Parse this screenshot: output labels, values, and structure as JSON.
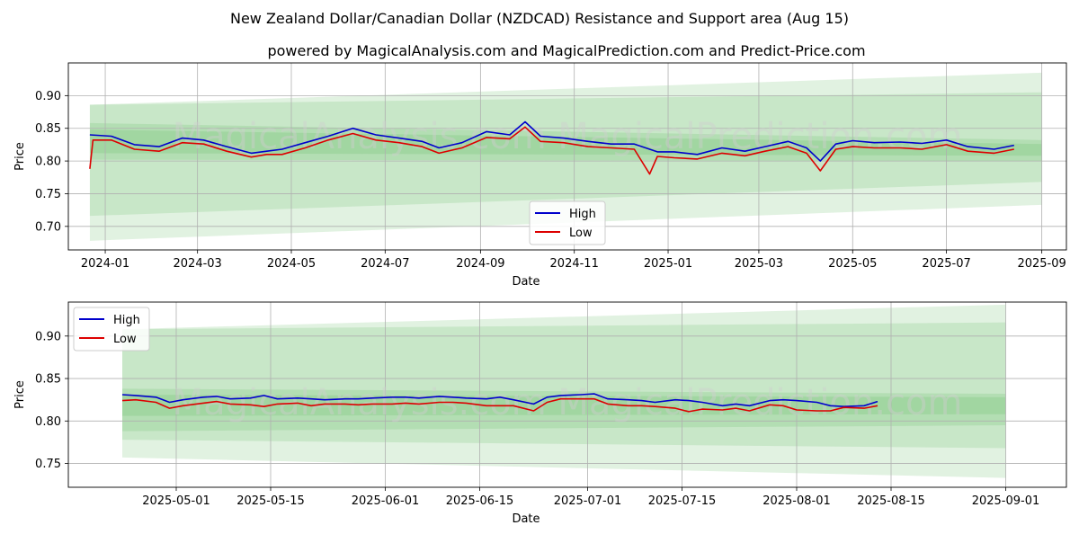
{
  "title": "New Zealand Dollar/Canadian Dollar (NZDCAD) Resistance and Support area (Aug 15)",
  "subtitle": "powered by MagicalAnalysis.com and MagicalPrediction.com and Predict-Price.com",
  "watermark": "MagicalAnalysis.com    MagicalPrediction.com",
  "colors": {
    "high": "#0000cc",
    "low": "#dd0000",
    "band": "#4caf50",
    "grid": "#b0b0b0"
  },
  "chart_data": [
    {
      "type": "line",
      "xlabel": "Date",
      "ylabel": "Price",
      "x_range": [
        "2023-12-08",
        "2025-09-17"
      ],
      "ylim": [
        0.664,
        0.95
      ],
      "x_ticks": [
        "2024-01",
        "2024-03",
        "2024-05",
        "2024-07",
        "2024-09",
        "2024-11",
        "2025-01",
        "2025-03",
        "2025-05",
        "2025-07",
        "2025-09"
      ],
      "x_tick_dates": [
        "2024-01-01",
        "2024-03-01",
        "2024-05-01",
        "2024-07-01",
        "2024-09-01",
        "2024-11-01",
        "2025-01-01",
        "2025-03-01",
        "2025-05-01",
        "2025-07-01",
        "2025-09-01"
      ],
      "y_ticks": [
        "0.70",
        "0.75",
        "0.80",
        "0.85",
        "0.90"
      ],
      "y_tick_values": [
        0.7,
        0.75,
        0.8,
        0.85,
        0.9
      ],
      "grid": true,
      "legend": "lower-center",
      "bands": [
        {
          "x": [
            "2023-12-22",
            "2025-09-01"
          ],
          "upper": [
            0.886,
            0.935
          ],
          "lower": [
            0.678,
            0.733
          ]
        },
        {
          "x": [
            "2023-12-22",
            "2025-09-01"
          ],
          "upper": [
            0.886,
            0.905
          ],
          "lower": [
            0.716,
            0.768
          ]
        },
        {
          "x": [
            "2023-12-22",
            "2025-09-01"
          ],
          "upper": [
            0.858,
            0.832
          ],
          "lower": [
            0.802,
            0.8
          ]
        },
        {
          "x": [
            "2023-12-22",
            "2025-09-01"
          ],
          "upper": [
            0.848,
            0.826
          ],
          "lower": [
            0.812,
            0.808
          ]
        }
      ],
      "series": [
        {
          "name": "High",
          "x": [
            "2023-12-22",
            "2024-01-05",
            "2024-01-20",
            "2024-02-05",
            "2024-02-20",
            "2024-03-05",
            "2024-03-20",
            "2024-04-05",
            "2024-04-15",
            "2024-04-25",
            "2024-05-10",
            "2024-05-25",
            "2024-06-10",
            "2024-06-25",
            "2024-07-10",
            "2024-07-25",
            "2024-08-05",
            "2024-08-20",
            "2024-09-05",
            "2024-09-20",
            "2024-09-30",
            "2024-10-10",
            "2024-10-25",
            "2024-11-10",
            "2024-11-25",
            "2024-12-10",
            "2024-12-25",
            "2025-01-05",
            "2025-01-20",
            "2025-02-05",
            "2025-02-20",
            "2025-03-05",
            "2025-03-20",
            "2025-04-01",
            "2025-04-10",
            "2025-04-20",
            "2025-05-01",
            "2025-05-15",
            "2025-06-01",
            "2025-06-15",
            "2025-07-01",
            "2025-07-15",
            "2025-08-01",
            "2025-08-14"
          ],
          "y": [
            0.84,
            0.838,
            0.825,
            0.822,
            0.835,
            0.832,
            0.822,
            0.812,
            0.815,
            0.818,
            0.828,
            0.838,
            0.85,
            0.84,
            0.835,
            0.83,
            0.82,
            0.828,
            0.845,
            0.84,
            0.86,
            0.838,
            0.835,
            0.83,
            0.826,
            0.826,
            0.814,
            0.814,
            0.81,
            0.82,
            0.815,
            0.822,
            0.83,
            0.82,
            0.8,
            0.826,
            0.831,
            0.828,
            0.829,
            0.827,
            0.832,
            0.822,
            0.818,
            0.824
          ]
        },
        {
          "name": "Low",
          "x": [
            "2023-12-22",
            "2023-12-24",
            "2024-01-05",
            "2024-01-20",
            "2024-02-05",
            "2024-02-20",
            "2024-03-05",
            "2024-03-20",
            "2024-04-05",
            "2024-04-15",
            "2024-04-25",
            "2024-05-10",
            "2024-05-25",
            "2024-06-10",
            "2024-06-25",
            "2024-07-10",
            "2024-07-25",
            "2024-08-05",
            "2024-08-20",
            "2024-09-05",
            "2024-09-20",
            "2024-09-30",
            "2024-10-10",
            "2024-10-25",
            "2024-11-10",
            "2024-11-25",
            "2024-12-10",
            "2024-12-20",
            "2024-12-25",
            "2025-01-05",
            "2025-01-20",
            "2025-02-05",
            "2025-02-20",
            "2025-03-05",
            "2025-03-20",
            "2025-04-01",
            "2025-04-10",
            "2025-04-20",
            "2025-05-01",
            "2025-05-15",
            "2025-06-01",
            "2025-06-15",
            "2025-07-01",
            "2025-07-15",
            "2025-08-01",
            "2025-08-14"
          ],
          "y": [
            0.788,
            0.832,
            0.832,
            0.818,
            0.815,
            0.828,
            0.826,
            0.815,
            0.806,
            0.81,
            0.81,
            0.82,
            0.832,
            0.842,
            0.832,
            0.828,
            0.822,
            0.812,
            0.82,
            0.836,
            0.834,
            0.852,
            0.83,
            0.828,
            0.822,
            0.82,
            0.818,
            0.78,
            0.807,
            0.805,
            0.803,
            0.812,
            0.808,
            0.815,
            0.822,
            0.812,
            0.785,
            0.818,
            0.822,
            0.82,
            0.82,
            0.818,
            0.825,
            0.815,
            0.812,
            0.818
          ]
        }
      ]
    },
    {
      "type": "line",
      "xlabel": "Date",
      "ylabel": "Price",
      "x_range": [
        "2025-04-15",
        "2025-09-10"
      ],
      "ylim": [
        0.722,
        0.94
      ],
      "x_ticks": [
        "2025-05-01",
        "2025-05-15",
        "2025-06-01",
        "2025-06-15",
        "2025-07-01",
        "2025-07-15",
        "2025-08-01",
        "2025-08-15",
        "2025-09-01"
      ],
      "x_tick_dates": [
        "2025-05-01",
        "2025-05-15",
        "2025-06-01",
        "2025-06-15",
        "2025-07-01",
        "2025-07-15",
        "2025-08-01",
        "2025-08-15",
        "2025-09-01"
      ],
      "y_ticks": [
        "0.75",
        "0.80",
        "0.85",
        "0.90"
      ],
      "y_tick_values": [
        0.75,
        0.8,
        0.85,
        0.9
      ],
      "grid": true,
      "legend": "top-left",
      "bands": [
        {
          "x": [
            "2025-04-23",
            "2025-09-01"
          ],
          "upper": [
            0.908,
            0.937
          ],
          "lower": [
            0.757,
            0.733
          ]
        },
        {
          "x": [
            "2025-04-23",
            "2025-09-01"
          ],
          "upper": [
            0.908,
            0.916
          ],
          "lower": [
            0.778,
            0.768
          ]
        },
        {
          "x": [
            "2025-04-23",
            "2025-09-01"
          ],
          "upper": [
            0.838,
            0.832
          ],
          "lower": [
            0.788,
            0.795
          ]
        },
        {
          "x": [
            "2025-04-23",
            "2025-09-01"
          ],
          "upper": [
            0.831,
            0.828
          ],
          "lower": [
            0.806,
            0.808
          ]
        }
      ],
      "series": [
        {
          "name": "High",
          "x": [
            "2025-04-23",
            "2025-04-25",
            "2025-04-28",
            "2025-04-30",
            "2025-05-02",
            "2025-05-05",
            "2025-05-07",
            "2025-05-09",
            "2025-05-12",
            "2025-05-14",
            "2025-05-16",
            "2025-05-19",
            "2025-05-21",
            "2025-05-23",
            "2025-05-26",
            "2025-05-28",
            "2025-05-30",
            "2025-06-02",
            "2025-06-04",
            "2025-06-06",
            "2025-06-09",
            "2025-06-11",
            "2025-06-13",
            "2025-06-16",
            "2025-06-18",
            "2025-06-20",
            "2025-06-23",
            "2025-06-25",
            "2025-06-27",
            "2025-06-30",
            "2025-07-02",
            "2025-07-04",
            "2025-07-07",
            "2025-07-09",
            "2025-07-11",
            "2025-07-14",
            "2025-07-16",
            "2025-07-18",
            "2025-07-21",
            "2025-07-23",
            "2025-07-25",
            "2025-07-28",
            "2025-07-30",
            "2025-08-01",
            "2025-08-04",
            "2025-08-06",
            "2025-08-08",
            "2025-08-11",
            "2025-08-13"
          ],
          "y": [
            0.831,
            0.83,
            0.828,
            0.822,
            0.825,
            0.828,
            0.829,
            0.826,
            0.827,
            0.83,
            0.826,
            0.827,
            0.826,
            0.825,
            0.826,
            0.826,
            0.827,
            0.828,
            0.828,
            0.827,
            0.829,
            0.828,
            0.827,
            0.826,
            0.828,
            0.825,
            0.82,
            0.828,
            0.83,
            0.831,
            0.832,
            0.826,
            0.825,
            0.824,
            0.822,
            0.825,
            0.824,
            0.822,
            0.818,
            0.82,
            0.818,
            0.824,
            0.825,
            0.824,
            0.822,
            0.818,
            0.817,
            0.818,
            0.823
          ]
        },
        {
          "name": "Low",
          "x": [
            "2025-04-23",
            "2025-04-25",
            "2025-04-28",
            "2025-04-30",
            "2025-05-02",
            "2025-05-05",
            "2025-05-07",
            "2025-05-09",
            "2025-05-12",
            "2025-05-14",
            "2025-05-16",
            "2025-05-19",
            "2025-05-21",
            "2025-05-23",
            "2025-05-26",
            "2025-05-28",
            "2025-05-30",
            "2025-06-02",
            "2025-06-04",
            "2025-06-06",
            "2025-06-09",
            "2025-06-11",
            "2025-06-13",
            "2025-06-16",
            "2025-06-18",
            "2025-06-20",
            "2025-06-23",
            "2025-06-25",
            "2025-06-27",
            "2025-06-30",
            "2025-07-02",
            "2025-07-04",
            "2025-07-07",
            "2025-07-09",
            "2025-07-11",
            "2025-07-14",
            "2025-07-16",
            "2025-07-18",
            "2025-07-21",
            "2025-07-23",
            "2025-07-25",
            "2025-07-28",
            "2025-07-30",
            "2025-08-01",
            "2025-08-04",
            "2025-08-06",
            "2025-08-08",
            "2025-08-11",
            "2025-08-13"
          ],
          "y": [
            0.824,
            0.825,
            0.822,
            0.815,
            0.818,
            0.821,
            0.823,
            0.82,
            0.819,
            0.817,
            0.82,
            0.821,
            0.818,
            0.82,
            0.82,
            0.819,
            0.82,
            0.82,
            0.821,
            0.82,
            0.822,
            0.822,
            0.821,
            0.818,
            0.818,
            0.818,
            0.812,
            0.822,
            0.826,
            0.826,
            0.826,
            0.82,
            0.818,
            0.818,
            0.817,
            0.815,
            0.811,
            0.814,
            0.813,
            0.815,
            0.812,
            0.819,
            0.818,
            0.813,
            0.812,
            0.812,
            0.816,
            0.815,
            0.818
          ]
        }
      ]
    }
  ]
}
